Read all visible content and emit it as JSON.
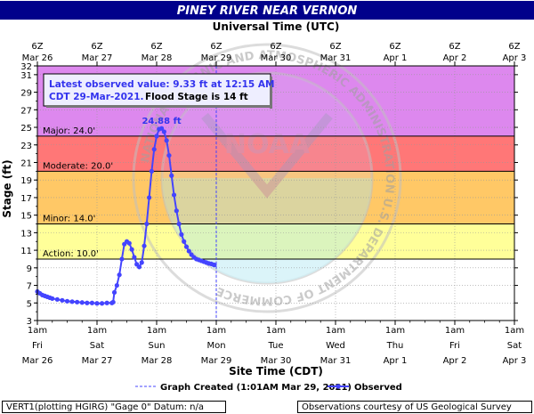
{
  "chart_data": {
    "type": "line",
    "title": "PINEY RIVER NEAR VERNON",
    "top_axis_title": "Universal Time (UTC)",
    "xlabel": "Site Time (CDT)",
    "ylabel": "Stage (ft)",
    "ylim": [
      3,
      32
    ],
    "y_ticks": [
      3,
      5,
      7,
      9,
      11,
      13,
      15,
      17,
      19,
      21,
      23,
      25,
      27,
      29,
      31,
      32
    ],
    "xlim_hours": [
      0,
      192
    ],
    "bottom_ticks": [
      {
        "h": 0,
        "l1": "1am",
        "l2": "Fri",
        "l3": "Mar 26"
      },
      {
        "h": 24,
        "l1": "1am",
        "l2": "Sat",
        "l3": "Mar 27"
      },
      {
        "h": 48,
        "l1": "1am",
        "l2": "Sun",
        "l3": "Mar 28"
      },
      {
        "h": 72,
        "l1": "1am",
        "l2": "Mon",
        "l3": "Mar 29"
      },
      {
        "h": 96,
        "l1": "1am",
        "l2": "Tue",
        "l3": "Mar 30"
      },
      {
        "h": 120,
        "l1": "1am",
        "l2": "Wed",
        "l3": "Mar 31"
      },
      {
        "h": 144,
        "l1": "1am",
        "l2": "Thu",
        "l3": "Apr 1"
      },
      {
        "h": 168,
        "l1": "1am",
        "l2": "Fri",
        "l3": "Apr 2"
      },
      {
        "h": 192,
        "l1": "1am",
        "l2": "Sat",
        "l3": "Apr 3"
      }
    ],
    "top_ticks": [
      {
        "h": 0,
        "l1": "6Z",
        "l2": "Mar 26"
      },
      {
        "h": 24,
        "l1": "6Z",
        "l2": "Mar 27"
      },
      {
        "h": 48,
        "l1": "6Z",
        "l2": "Mar 28"
      },
      {
        "h": 72,
        "l1": "6Z",
        "l2": "Mar 29"
      },
      {
        "h": 96,
        "l1": "6Z",
        "l2": "Mar 30"
      },
      {
        "h": 120,
        "l1": "6Z",
        "l2": "Mar 31"
      },
      {
        "h": 144,
        "l1": "6Z",
        "l2": "Apr 1"
      },
      {
        "h": 168,
        "l1": "6Z",
        "l2": "Apr 2"
      },
      {
        "h": 192,
        "l1": "6Z",
        "l2": "Apr 3"
      }
    ],
    "bands": [
      {
        "label": "Action: 10.0'",
        "from": 10,
        "to": 14,
        "color": "#ffff99"
      },
      {
        "label": "Minor: 14.0'",
        "from": 14,
        "to": 20,
        "color": "#ffc866"
      },
      {
        "label": "Moderate: 20.0'",
        "from": 20,
        "to": 24,
        "color": "#ff7777"
      },
      {
        "label": "Major: 24.0'",
        "from": 24,
        "to": 32,
        "color": "#dd88ee"
      }
    ],
    "series": [
      {
        "name": "Observed",
        "color": "#4444ff",
        "x": [
          0,
          1,
          2,
          3,
          4,
          5,
          6,
          8,
          10,
          12,
          14,
          16,
          18,
          20,
          22,
          24,
          26,
          28,
          30,
          30.5,
          31,
          32,
          33,
          34,
          35,
          36,
          37,
          38,
          39,
          40,
          41,
          42,
          43,
          44,
          45,
          46,
          47,
          48,
          49,
          50,
          51,
          52,
          53,
          54,
          55,
          56,
          57,
          58,
          59,
          60,
          61,
          62,
          63,
          64,
          65,
          66,
          67,
          68,
          69,
          70,
          71,
          71.25
        ],
        "y": [
          6.3,
          6.1,
          5.9,
          5.8,
          5.7,
          5.6,
          5.5,
          5.4,
          5.3,
          5.2,
          5.15,
          5.1,
          5.05,
          5.0,
          5.0,
          4.95,
          4.95,
          5.0,
          5.0,
          5.1,
          6.2,
          7.0,
          8.2,
          10.0,
          11.7,
          12.0,
          11.8,
          11.1,
          10.2,
          9.4,
          9.1,
          9.6,
          11.5,
          14.0,
          17.0,
          20.0,
          22.5,
          24.0,
          24.8,
          24.88,
          24.5,
          23.5,
          21.8,
          19.5,
          17.3,
          15.5,
          14.0,
          12.8,
          12.0,
          11.4,
          10.9,
          10.5,
          10.2,
          10.0,
          9.9,
          9.8,
          9.7,
          9.6,
          9.5,
          9.45,
          9.35,
          9.33
        ]
      }
    ],
    "peak_label": "24.88 ft",
    "peak_hour": 50,
    "peak_value": 24.88,
    "graph_created_hour": 72,
    "latest_box": {
      "line1": "Latest observed value: 9.33 ft at 12:15 AM",
      "line2a": "CDT 29-Mar-2021.",
      "line2b": "Flood Stage is 14 ft"
    },
    "legend": {
      "created": "Graph Created (1:01AM Mar 29, 2021)",
      "observed": "Observed"
    },
    "watermark": {
      "center": "NOAA",
      "ring": "NATIONAL OCEANIC AND ATMOSPHERIC ADMINISTRATION U.S. DEPARTMENT OF COMMERCE"
    },
    "colors": {
      "title_bg": "#00008b",
      "plot_bg": "#ffffff",
      "border": "#000000",
      "box_bg": "#eeeeff",
      "box_text": "#3333ee"
    }
  },
  "footer": {
    "left": "VERT1(plotting HGIRG) \"Gage 0\" Datum: n/a",
    "right": "Observations courtesy of US Geological Survey"
  }
}
